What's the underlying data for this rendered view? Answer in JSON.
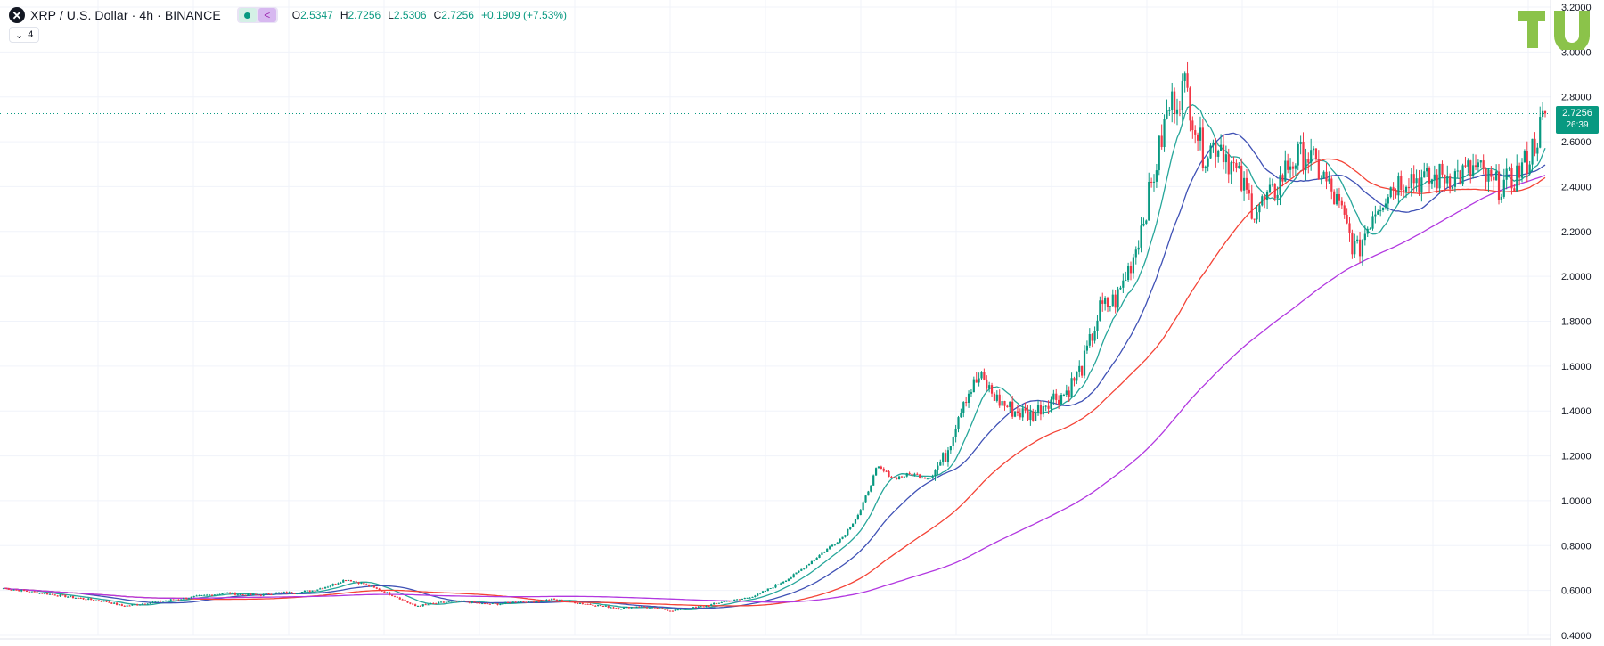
{
  "header": {
    "symbol_title": "XRP / U.S. Dollar · 4h · BINANCE",
    "symbol_icon": "✕",
    "ohlc": [
      {
        "key": "O",
        "value": "2.5347"
      },
      {
        "key": "H",
        "value": "2.7256"
      },
      {
        "key": "L",
        "value": "2.5306"
      },
      {
        "key": "C",
        "value": "2.7256"
      },
      {
        "key": "",
        "value": "+0.1909 (+7.53%)"
      }
    ],
    "indicator_count": "4"
  },
  "price_label": {
    "price": "2.7256",
    "countdown": "26:39"
  },
  "colors": {
    "up": "#089981",
    "down": "#f23645",
    "ma_fast": "#26a69a",
    "ma_mid": "#3f51b5",
    "ma_slow": "#f44336",
    "ma_long": "#b238e0",
    "grid": "#f0f3fa",
    "axis_text": "#131722"
  },
  "chart_data": {
    "type": "candlestick",
    "ylim": [
      0.4,
      3.2
    ],
    "yticks": [
      "0.4000",
      "0.6000",
      "0.8000",
      "1.0000",
      "1.2000",
      "1.4000",
      "1.6000",
      "1.8000",
      "2.0000",
      "2.2000",
      "2.4000",
      "2.6000",
      "2.8000",
      "3.0000",
      "3.2000"
    ],
    "last_price": 2.7256,
    "approx_close": [
      0.61,
      0.6,
      0.59,
      0.58,
      0.57,
      0.56,
      0.55,
      0.53,
      0.54,
      0.55,
      0.56,
      0.57,
      0.58,
      0.59,
      0.58,
      0.58,
      0.59,
      0.59,
      0.6,
      0.62,
      0.65,
      0.63,
      0.6,
      0.57,
      0.53,
      0.54,
      0.55,
      0.55,
      0.54,
      0.54,
      0.55,
      0.55,
      0.56,
      0.55,
      0.54,
      0.53,
      0.52,
      0.53,
      0.52,
      0.51,
      0.52,
      0.53,
      0.55,
      0.56,
      0.58,
      0.62,
      0.66,
      0.72,
      0.78,
      0.84,
      0.95,
      1.15,
      1.1,
      1.12,
      1.1,
      1.2,
      1.45,
      1.55,
      1.45,
      1.4,
      1.38,
      1.45,
      1.48,
      1.6,
      1.85,
      1.9,
      2.1,
      2.4,
      2.75,
      2.85,
      2.55,
      2.6,
      2.45,
      2.3,
      2.35,
      2.5,
      2.55,
      2.45,
      2.3,
      2.1,
      2.3,
      2.4,
      2.45,
      2.42,
      2.45,
      2.45,
      2.48,
      2.4,
      2.42,
      2.52,
      2.72
    ],
    "moving_averages": [
      {
        "name": "",
        "color_key": "ma_fast"
      },
      {
        "name": "",
        "color_key": "ma_mid"
      },
      {
        "name": "",
        "color_key": "ma_slow"
      },
      {
        "name": "",
        "color_key": "ma_long"
      }
    ]
  }
}
